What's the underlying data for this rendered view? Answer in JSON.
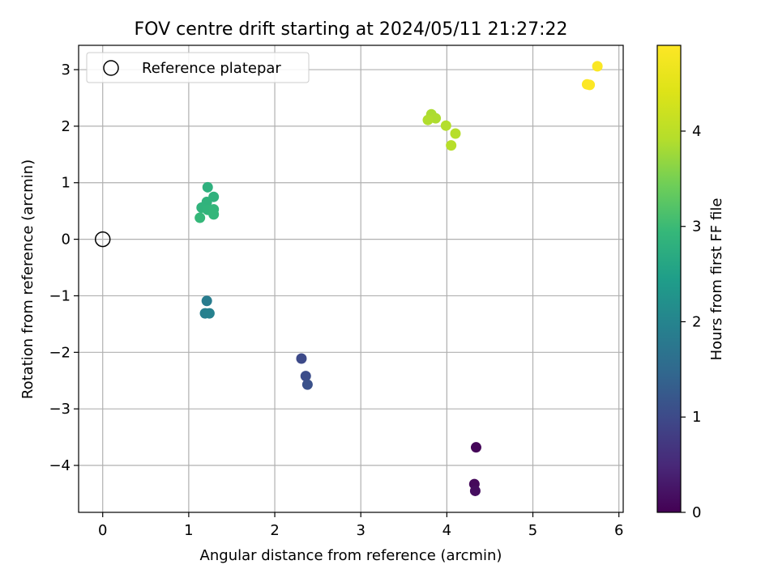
{
  "chart_data": {
    "type": "scatter",
    "title": "FOV centre drift starting at 2024/05/11 21:27:22",
    "xlabel": "Angular distance from reference (arcmin)",
    "ylabel": "Rotation from reference (arcmin)",
    "xlim": [
      -0.28,
      6.05
    ],
    "ylim": [
      -4.83,
      3.43
    ],
    "xticks": [
      0,
      1,
      2,
      3,
      4,
      5,
      6
    ],
    "yticks": [
      -4,
      -3,
      -2,
      -1,
      0,
      1,
      2,
      3
    ],
    "xtick_labels": [
      "0",
      "1",
      "2",
      "3",
      "4",
      "5",
      "6"
    ],
    "ytick_labels": [
      "−4",
      "−3",
      "−2",
      "−1",
      "0",
      "1",
      "2",
      "3"
    ],
    "grid": true,
    "colormap": "viridis",
    "colorbar": {
      "label": "Hours from first FF file",
      "range": [
        0,
        4.9
      ],
      "ticks": [
        0,
        1,
        2,
        3,
        4
      ],
      "tick_labels": [
        "0",
        "1",
        "2",
        "3",
        "4"
      ]
    },
    "legend": {
      "placement": "top-left",
      "entries": [
        {
          "label": "Reference platepar",
          "marker": "open-circle"
        }
      ]
    },
    "reference_point": {
      "x": 0,
      "y": 0
    },
    "points": [
      {
        "x": 4.34,
        "y": -3.68,
        "hours": 0.05
      },
      {
        "x": 4.32,
        "y": -4.33,
        "hours": 0.1
      },
      {
        "x": 4.33,
        "y": -4.45,
        "hours": 0.15
      },
      {
        "x": 2.31,
        "y": -2.11,
        "hours": 1.0
      },
      {
        "x": 2.36,
        "y": -2.42,
        "hours": 1.05
      },
      {
        "x": 2.38,
        "y": -2.57,
        "hours": 1.1
      },
      {
        "x": 1.21,
        "y": -1.09,
        "hours": 1.85
      },
      {
        "x": 1.19,
        "y": -1.31,
        "hours": 1.9
      },
      {
        "x": 1.24,
        "y": -1.31,
        "hours": 1.95
      },
      {
        "x": 1.22,
        "y": 0.92,
        "hours": 2.8
      },
      {
        "x": 1.29,
        "y": 0.75,
        "hours": 2.82
      },
      {
        "x": 1.21,
        "y": 0.66,
        "hours": 2.84
      },
      {
        "x": 1.15,
        "y": 0.56,
        "hours": 2.86
      },
      {
        "x": 1.22,
        "y": 0.52,
        "hours": 2.88
      },
      {
        "x": 1.29,
        "y": 0.53,
        "hours": 2.9
      },
      {
        "x": 1.29,
        "y": 0.44,
        "hours": 2.92
      },
      {
        "x": 1.13,
        "y": 0.38,
        "hours": 2.94
      },
      {
        "x": 3.82,
        "y": 2.21,
        "hours": 3.85
      },
      {
        "x": 3.87,
        "y": 2.14,
        "hours": 3.87
      },
      {
        "x": 3.78,
        "y": 2.11,
        "hours": 3.89
      },
      {
        "x": 3.99,
        "y": 2.01,
        "hours": 3.91
      },
      {
        "x": 4.1,
        "y": 1.87,
        "hours": 3.93
      },
      {
        "x": 4.05,
        "y": 1.66,
        "hours": 3.95
      },
      {
        "x": 5.75,
        "y": 3.06,
        "hours": 4.85
      },
      {
        "x": 5.63,
        "y": 2.74,
        "hours": 4.87
      },
      {
        "x": 5.66,
        "y": 2.73,
        "hours": 4.89
      }
    ]
  }
}
